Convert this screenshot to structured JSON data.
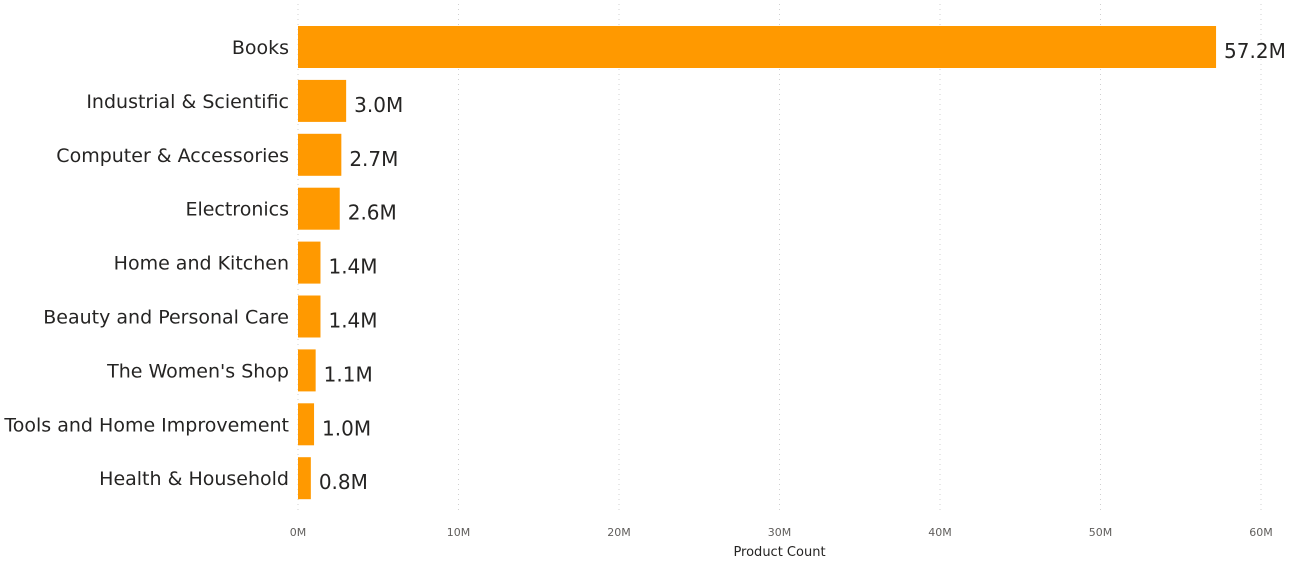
{
  "chart_data": {
    "type": "bar",
    "orientation": "horizontal",
    "categories": [
      "Books",
      "Industrial & Scientific",
      "Computer & Accessories",
      "Electronics",
      "Home and Kitchen",
      "Beauty and Personal Care",
      "The Women's Shop",
      "Tools and Home Improvement",
      "Health & Household"
    ],
    "values": [
      57.2,
      3.0,
      2.7,
      2.6,
      1.4,
      1.4,
      1.1,
      1.0,
      0.8
    ],
    "data_labels": [
      "57.2M",
      "3.0M",
      "2.7M",
      "2.6M",
      "1.4M",
      "1.4M",
      "1.1M",
      "1.0M",
      "0.8M"
    ],
    "value_unit": "M",
    "title": "",
    "xlabel": "Product Count",
    "ylabel": "",
    "xlim": [
      0,
      60
    ],
    "x_ticks": [
      0,
      10,
      20,
      30,
      40,
      50,
      60
    ],
    "x_tick_labels": [
      "0M",
      "10M",
      "20M",
      "30M",
      "40M",
      "50M",
      "60M"
    ],
    "grid": "vertical-dotted",
    "legend": "none",
    "bar_color": "#FF9900"
  }
}
